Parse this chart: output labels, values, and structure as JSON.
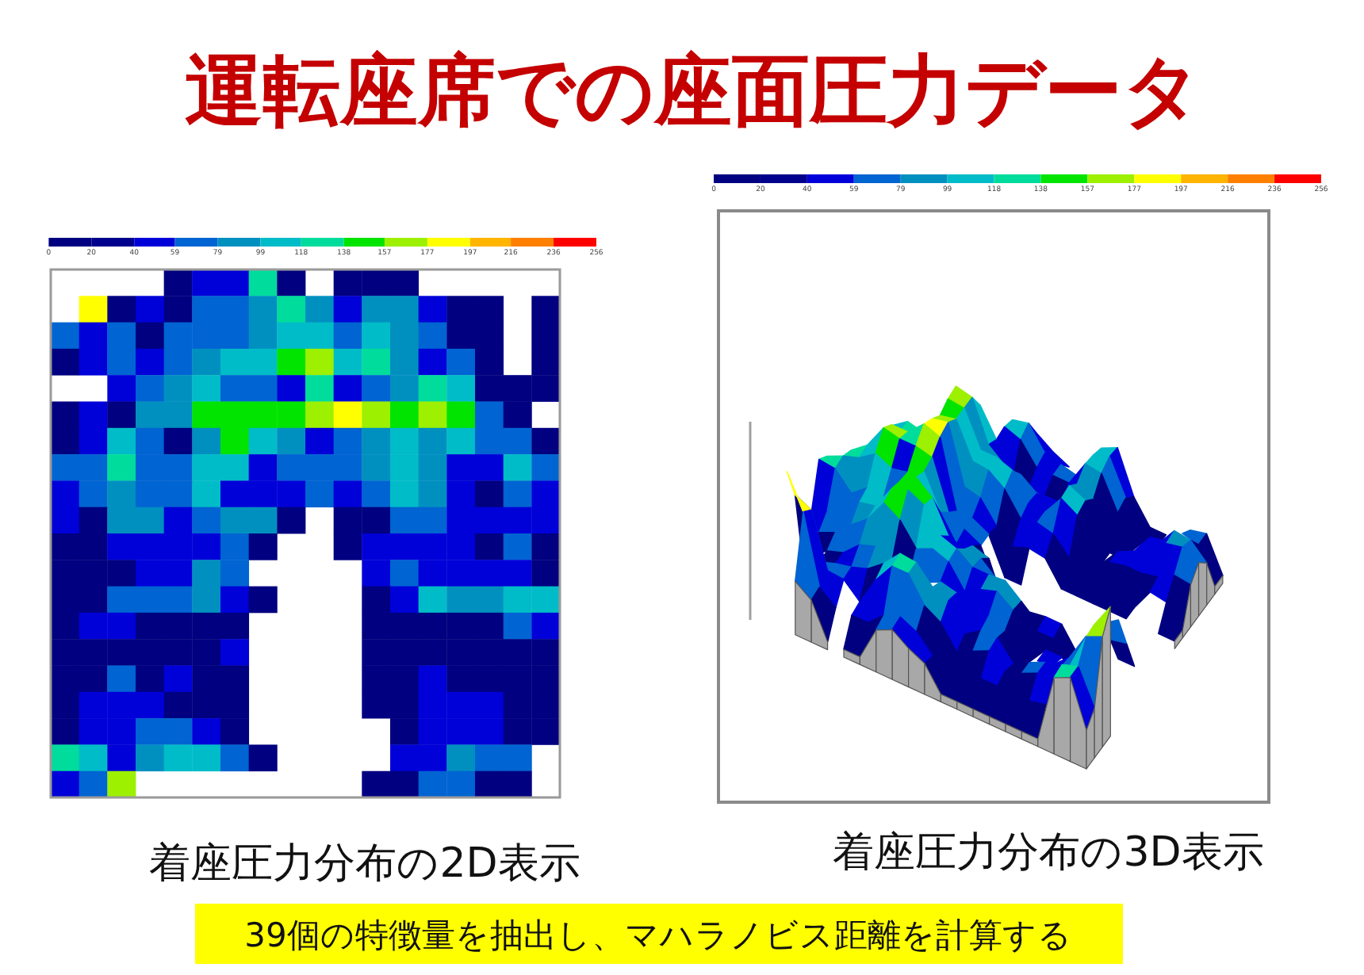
{
  "chart_data": [
    {
      "type": "heatmap",
      "title": "運転座席での座面圧力データ",
      "xlabel": "着座圧力分布の2D表示",
      "annotations": [
        "39個の特徴量を抽出し、マハラノビス距離を計算する"
      ],
      "categories": [
        null,
        null,
        null,
        null,
        null,
        null,
        null,
        null,
        null,
        null,
        null,
        null,
        null,
        null,
        null,
        null,
        null,
        null
      ],
      "y_categories": [
        null,
        null,
        null,
        null,
        null,
        null,
        null,
        null,
        null,
        null,
        null,
        null,
        null,
        null,
        null,
        null,
        null,
        null,
        null,
        null
      ],
      "cells": [
        [
          null,
          null,
          null,
          null,
          10,
          50,
          50,
          128,
          10,
          null,
          10,
          10,
          10,
          null,
          null,
          null,
          null,
          null
        ],
        [
          null,
          187,
          10,
          50,
          10,
          69,
          69,
          89,
          128,
          89,
          50,
          89,
          89,
          50,
          10,
          10,
          null,
          10
        ],
        [
          69,
          50,
          69,
          10,
          69,
          69,
          69,
          89,
          108,
          108,
          69,
          108,
          89,
          69,
          10,
          10,
          null,
          10
        ],
        [
          10,
          50,
          69,
          50,
          69,
          89,
          108,
          108,
          148,
          167,
          108,
          128,
          89,
          50,
          69,
          10,
          null,
          10
        ],
        [
          null,
          null,
          50,
          69,
          89,
          108,
          69,
          69,
          50,
          128,
          50,
          69,
          89,
          128,
          108,
          10,
          10,
          10
        ],
        [
          10,
          50,
          10,
          89,
          89,
          148,
          148,
          148,
          148,
          167,
          187,
          167,
          148,
          167,
          148,
          69,
          10,
          null
        ],
        [
          10,
          50,
          108,
          69,
          10,
          89,
          148,
          108,
          89,
          50,
          69,
          89,
          108,
          89,
          108,
          69,
          69,
          10
        ],
        [
          69,
          69,
          128,
          69,
          69,
          108,
          108,
          50,
          69,
          69,
          69,
          89,
          108,
          89,
          50,
          50,
          108,
          69
        ],
        [
          50,
          69,
          89,
          69,
          69,
          108,
          50,
          50,
          50,
          69,
          50,
          69,
          108,
          89,
          50,
          10,
          69,
          50
        ],
        [
          50,
          10,
          89,
          89,
          50,
          69,
          89,
          89,
          10,
          null,
          10,
          10,
          69,
          69,
          50,
          50,
          50,
          50
        ],
        [
          10,
          10,
          50,
          50,
          50,
          50,
          69,
          10,
          null,
          null,
          10,
          50,
          50,
          50,
          50,
          10,
          69,
          10
        ],
        [
          10,
          10,
          10,
          50,
          50,
          89,
          69,
          null,
          null,
          null,
          null,
          50,
          69,
          50,
          50,
          50,
          50,
          10
        ],
        [
          10,
          10,
          69,
          69,
          69,
          89,
          50,
          10,
          null,
          null,
          null,
          10,
          50,
          108,
          89,
          89,
          108,
          108
        ],
        [
          10,
          50,
          50,
          10,
          10,
          10,
          10,
          null,
          null,
          null,
          null,
          10,
          10,
          10,
          10,
          10,
          69,
          50
        ],
        [
          10,
          10,
          10,
          10,
          10,
          10,
          50,
          null,
          null,
          null,
          null,
          10,
          10,
          10,
          10,
          10,
          10,
          10
        ],
        [
          10,
          10,
          69,
          10,
          50,
          10,
          10,
          null,
          null,
          null,
          null,
          10,
          10,
          50,
          10,
          10,
          10,
          10
        ],
        [
          10,
          50,
          50,
          50,
          10,
          10,
          10,
          null,
          null,
          null,
          null,
          10,
          10,
          50,
          50,
          50,
          10,
          10
        ],
        [
          10,
          50,
          50,
          69,
          69,
          50,
          10,
          null,
          null,
          null,
          null,
          null,
          10,
          50,
          50,
          50,
          10,
          10
        ],
        [
          128,
          108,
          50,
          89,
          108,
          108,
          69,
          10,
          null,
          null,
          null,
          null,
          50,
          50,
          89,
          69,
          69,
          null
        ],
        [
          50,
          69,
          167,
          null,
          null,
          null,
          null,
          null,
          null,
          null,
          null,
          10,
          10,
          69,
          69,
          10,
          10,
          null
        ]
      ],
      "clim": [
        0,
        256
      ],
      "cticks": [
        0,
        20,
        40,
        59,
        79,
        99,
        118,
        138,
        157,
        177,
        197,
        216,
        236,
        256
      ],
      "colors": [
        "#000080",
        "#00008c",
        "#0000d8",
        "#0064d2",
        "#0090c0",
        "#00bcc8",
        "#00dc9c",
        "#00e400",
        "#9cf000",
        "#ffff00",
        "#ffb400",
        "#ff8000",
        "#ff0000"
      ]
    },
    {
      "type": "other",
      "xlabel": "着座圧力分布の3D表示",
      "annotations": [
        "0",
        "20",
        "40",
        "59",
        "79",
        "99",
        "118",
        "138",
        "157",
        "177",
        "197",
        "216",
        "236",
        "256"
      ]
    }
  ]
}
